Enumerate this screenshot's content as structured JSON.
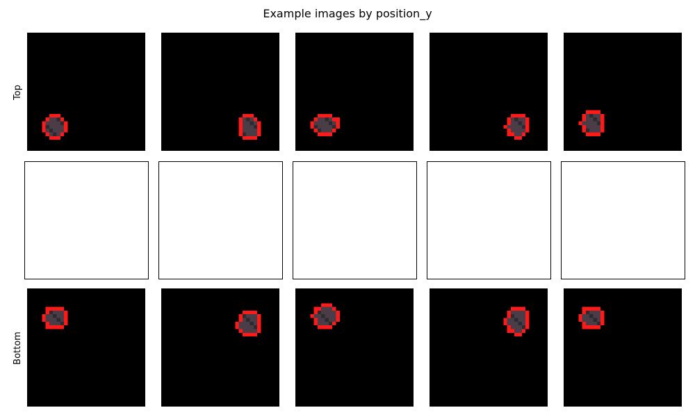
{
  "figure": {
    "title": "Example images by position_y"
  },
  "rows": [
    {
      "label": "Top"
    },
    {
      "label": ""
    },
    {
      "label": "Bottom"
    }
  ],
  "colors": {
    "background": "#000000",
    "outline": "#ff1a1a",
    "blob_fill": "#4b3d48",
    "blob_shadow": "#2b2a2e",
    "empty_panel": "#ffffff"
  },
  "chart_data": {
    "type": "heatmap",
    "title": "Example images by position_y",
    "grid": {
      "rows": 3,
      "cols": 5
    },
    "row_labels": [
      "Top",
      "",
      "Bottom"
    ],
    "image_size": [
      32,
      32
    ],
    "axes": "off",
    "panels": [
      {
        "row": 0,
        "col": 0,
        "blob": {
          "cx": 7.6,
          "cy": 25.5,
          "rx": 3.3,
          "ry": 3.6
        }
      },
      {
        "row": 0,
        "col": 1,
        "blob": {
          "cx": 23.8,
          "cy": 25.6,
          "rx": 3.2,
          "ry": 3.6
        }
      },
      {
        "row": 0,
        "col": 2,
        "blob": {
          "cx": 8.2,
          "cy": 24.9,
          "rx": 3.8,
          "ry": 3.0
        }
      },
      {
        "row": 0,
        "col": 3,
        "blob": {
          "cx": 23.8,
          "cy": 25.3,
          "rx": 3.4,
          "ry": 3.3
        }
      },
      {
        "row": 0,
        "col": 4,
        "blob": {
          "cx": 7.8,
          "cy": 24.5,
          "rx": 3.3,
          "ry": 3.6
        }
      },
      {
        "row": 1,
        "col": 0,
        "empty": true
      },
      {
        "row": 1,
        "col": 1,
        "empty": true
      },
      {
        "row": 1,
        "col": 2,
        "empty": true
      },
      {
        "row": 1,
        "col": 3,
        "empty": true
      },
      {
        "row": 1,
        "col": 4,
        "empty": true
      },
      {
        "row": 2,
        "col": 0,
        "blob": {
          "cx": 7.6,
          "cy": 8.0,
          "rx": 3.3,
          "ry": 3.4
        }
      },
      {
        "row": 2,
        "col": 1,
        "blob": {
          "cx": 23.8,
          "cy": 9.6,
          "rx": 3.4,
          "ry": 3.8
        }
      },
      {
        "row": 2,
        "col": 2,
        "blob": {
          "cx": 8.2,
          "cy": 7.6,
          "rx": 3.8,
          "ry": 3.3
        }
      },
      {
        "row": 2,
        "col": 3,
        "blob": {
          "cx": 23.8,
          "cy": 8.6,
          "rx": 3.4,
          "ry": 4.0
        }
      },
      {
        "row": 2,
        "col": 4,
        "blob": {
          "cx": 7.6,
          "cy": 8.0,
          "rx": 3.3,
          "ry": 3.4
        }
      }
    ]
  }
}
